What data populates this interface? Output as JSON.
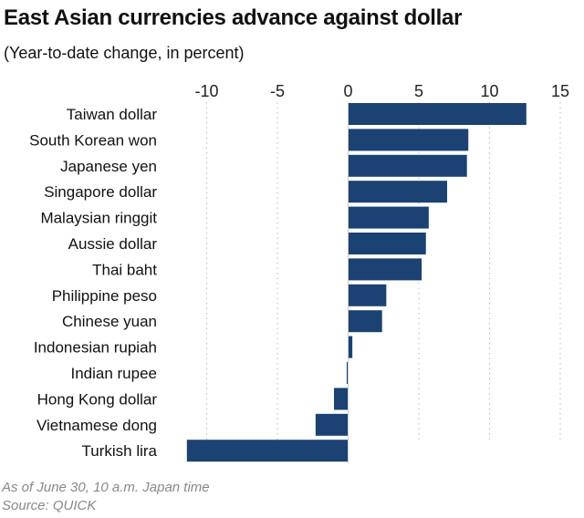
{
  "chart_data": {
    "type": "bar",
    "orientation": "horizontal",
    "title": "East Asian currencies advance against dollar",
    "subtitle": "(Year-to-date change, in percent)",
    "categories": [
      "Taiwan dollar",
      "South Korean won",
      "Japanese yen",
      "Singapore dollar",
      "Malaysian ringgit",
      "Aussie dollar",
      "Thai baht",
      "Philippine peso",
      "Chinese yuan",
      "Indonesian rupiah",
      "Indian rupee",
      "Hong Kong dollar",
      "Vietnamese dong",
      "Turkish lira"
    ],
    "values": [
      12.6,
      8.5,
      8.4,
      7.0,
      5.7,
      5.5,
      5.2,
      2.7,
      2.4,
      0.3,
      -0.1,
      -1.0,
      -2.3,
      -11.4
    ],
    "xlim": [
      -11.5,
      15
    ],
    "xticks": [
      -10,
      -5,
      0,
      5,
      10,
      15
    ],
    "xtick_labels": [
      "-10",
      "-5",
      "0",
      "5",
      "10",
      "15"
    ],
    "grid": "vertical dotted",
    "bar_color": "#1b4272",
    "note": "As of June 30, 10 a.m. Japan time",
    "source": "Source: QUICK"
  }
}
